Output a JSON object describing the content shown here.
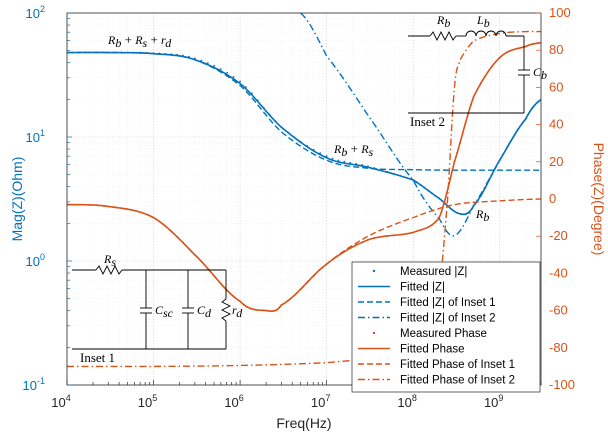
{
  "chart_data": {
    "type": "line",
    "xlabel": "Freq(Hz)",
    "ylabel_left": "Mag(Z)(Ohm)",
    "ylabel_right": "Phase(Z)(Degree)",
    "x_scale": "log",
    "y_left_scale": "log",
    "xlim": [
      10000,
      3000000000
    ],
    "ylim_left": [
      0.1,
      100
    ],
    "ylim_right": [
      -100,
      100
    ],
    "x_ticks": [
      "10^4",
      "10^5",
      "10^6",
      "10^7",
      "10^8",
      "10^9"
    ],
    "x_ticks_base": [
      "10",
      "10",
      "10",
      "10",
      "10",
      "10"
    ],
    "x_ticks_exp": [
      "4",
      "5",
      "6",
      "7",
      "8",
      "9"
    ],
    "y_left_ticks_base": [
      "10",
      "10",
      "10",
      "10"
    ],
    "y_left_ticks_exp": [
      "-1",
      "0",
      "1",
      "2"
    ],
    "y_right_ticks": [
      "100",
      "80",
      "60",
      "40",
      "20",
      "0",
      "-20",
      "-40",
      "-60",
      "-80",
      "-100"
    ],
    "grid": true,
    "legend_placement": "bottom-right",
    "colors": {
      "blue": "#0072BD",
      "orange": "#D95319"
    },
    "series": [
      {
        "name": "Measured |Z|",
        "axis": "left",
        "style": "dots",
        "color": "#0072BD",
        "x": [
          10000,
          30000,
          100000,
          300000,
          1000000,
          3000000,
          10000000,
          30000000,
          100000000,
          200000000,
          350000000,
          500000000,
          1000000000,
          2000000000,
          3000000000
        ],
        "y": [
          48,
          48,
          47.5,
          43,
          28,
          12,
          7,
          5.8,
          4.5,
          3.2,
          2.4,
          2.8,
          6.5,
          14,
          20
        ]
      },
      {
        "name": "Fitted |Z|",
        "axis": "left",
        "style": "solid",
        "color": "#0072BD",
        "x": [
          10000,
          30000,
          100000,
          300000,
          1000000,
          3000000,
          10000000,
          30000000,
          100000000,
          200000000,
          350000000,
          500000000,
          1000000000,
          2000000000,
          3000000000
        ],
        "y": [
          48,
          48,
          47,
          42,
          27,
          12,
          6.8,
          5.7,
          4.5,
          3.2,
          2.4,
          2.8,
          6.5,
          14,
          20
        ]
      },
      {
        "name": "Fitted |Z| of Inset 1",
        "axis": "left",
        "style": "dashed",
        "color": "#0072BD",
        "x": [
          10000,
          30000,
          100000,
          300000,
          1000000,
          3000000,
          10000000,
          30000000,
          100000000,
          300000000,
          1000000000,
          3000000000
        ],
        "y": [
          48,
          48,
          47,
          42,
          26,
          11,
          6.5,
          5.6,
          5.45,
          5.4,
          5.4,
          5.4
        ]
      },
      {
        "name": "Fitted |Z| of Inset 2",
        "axis": "left",
        "style": "dashdot",
        "color": "#0072BD",
        "x": [
          5000000,
          10000000,
          30000000,
          100000000,
          200000000,
          300000000,
          500000000,
          1000000000,
          2000000000,
          3000000000
        ],
        "y": [
          100,
          45,
          15,
          4.5,
          2.2,
          1.6,
          2.8,
          6.5,
          14,
          20
        ]
      },
      {
        "name": "Measured Phase",
        "axis": "right",
        "style": "dots",
        "color": "#D95319",
        "x": [
          10000,
          30000,
          100000,
          300000,
          1000000,
          2000000,
          3000000,
          10000000,
          30000000,
          100000000,
          200000000,
          300000000,
          500000000,
          1000000000,
          2000000000,
          3000000000
        ],
        "y": [
          -3,
          -4,
          -10,
          -30,
          -55,
          -60,
          -57,
          -35,
          -22,
          -18,
          -10,
          20,
          55,
          76,
          82,
          84
        ]
      },
      {
        "name": "Fitted Phase",
        "axis": "right",
        "style": "solid",
        "color": "#D95319",
        "x": [
          10000,
          30000,
          100000,
          300000,
          1000000,
          2000000,
          3000000,
          10000000,
          30000000,
          100000000,
          200000000,
          300000000,
          500000000,
          1000000000,
          2000000000,
          3000000000
        ],
        "y": [
          -3,
          -4,
          -10,
          -30,
          -55,
          -60,
          -57,
          -35,
          -22,
          -18,
          -10,
          20,
          55,
          76,
          82,
          84
        ]
      },
      {
        "name": "Fitted Phase of Inset 1",
        "axis": "right",
        "style": "dashed",
        "color": "#D95319",
        "x": [
          10000,
          30000,
          100000,
          300000,
          1000000,
          2000000,
          3000000,
          10000000,
          30000000,
          100000000,
          300000000,
          1000000000,
          3000000000
        ],
        "y": [
          -3,
          -4,
          -10,
          -30,
          -55,
          -60,
          -57,
          -35,
          -20,
          -10,
          -3,
          -1,
          0
        ]
      },
      {
        "name": "Fitted Phase of Inset 2",
        "axis": "right",
        "style": "dashdot",
        "color": "#D95319",
        "x": [
          10000,
          100000,
          1000000,
          10000000,
          30000000,
          100000000,
          200000000,
          250000000,
          300000000,
          350000000,
          500000000,
          1000000000,
          2000000000,
          3000000000
        ],
        "y": [
          -90,
          -90,
          -89.5,
          -88,
          -85,
          -75,
          -50,
          0,
          60,
          75,
          85,
          89,
          90,
          90
        ]
      }
    ],
    "annotations": {
      "rb_rs_rd": {
        "base": "R",
        "sub1": "b",
        "mid1": " + ",
        "base2": "R",
        "sub2": "s",
        "mid2": " + ",
        "base3": "r",
        "sub3": "d"
      },
      "rb_rs": {
        "base": "R",
        "sub1": "b",
        "mid1": " + ",
        "base2": "R",
        "sub2": "s"
      },
      "rb": {
        "base": "R",
        "sub1": "b"
      }
    },
    "inset1": {
      "label": "Inset 1",
      "rs": {
        "base": "R",
        "sub": "s"
      },
      "csc": {
        "base": "C",
        "sub": "sc"
      },
      "cd": {
        "base": "C",
        "sub": "d"
      },
      "rd": {
        "base": "r",
        "sub": "d"
      }
    },
    "inset2": {
      "label": "Inset 2",
      "rb": {
        "base": "R",
        "sub": "b"
      },
      "lb": {
        "base": "L",
        "sub": "b"
      },
      "cb": {
        "base": "C",
        "sub": "b"
      }
    }
  }
}
